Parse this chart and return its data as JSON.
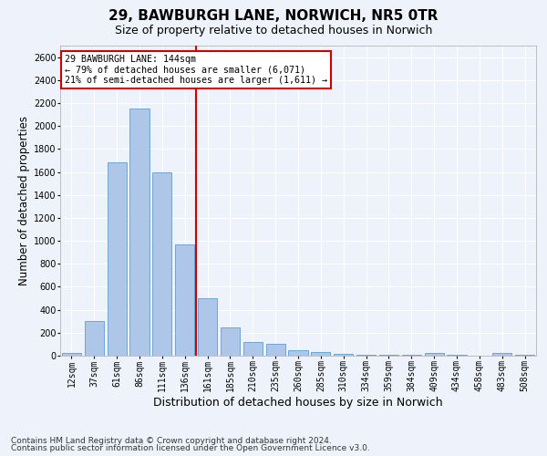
{
  "title_line1": "29, BAWBURGH LANE, NORWICH, NR5 0TR",
  "title_line2": "Size of property relative to detached houses in Norwich",
  "xlabel": "Distribution of detached houses by size in Norwich",
  "ylabel": "Number of detached properties",
  "categories": [
    "12sqm",
    "37sqm",
    "61sqm",
    "86sqm",
    "111sqm",
    "136sqm",
    "161sqm",
    "185sqm",
    "210sqm",
    "235sqm",
    "260sqm",
    "285sqm",
    "310sqm",
    "334sqm",
    "359sqm",
    "384sqm",
    "409sqm",
    "434sqm",
    "458sqm",
    "483sqm",
    "508sqm"
  ],
  "values": [
    20,
    300,
    1680,
    2150,
    1600,
    970,
    500,
    250,
    120,
    100,
    45,
    30,
    15,
    10,
    8,
    5,
    20,
    5,
    3,
    25,
    5
  ],
  "bar_color": "#aec6e8",
  "bar_edge_color": "#5a9fd4",
  "vline_x": 5.5,
  "vline_color": "#cc0000",
  "annotation_text": "29 BAWBURGH LANE: 144sqm\n← 79% of detached houses are smaller (6,071)\n21% of semi-detached houses are larger (1,611) →",
  "annotation_box_color": "#ffffff",
  "annotation_box_edge": "#cc0000",
  "ylim": [
    0,
    2700
  ],
  "yticks": [
    0,
    200,
    400,
    600,
    800,
    1000,
    1200,
    1400,
    1600,
    1800,
    2000,
    2200,
    2400,
    2600
  ],
  "footer1": "Contains HM Land Registry data © Crown copyright and database right 2024.",
  "footer2": "Contains public sector information licensed under the Open Government Licence v3.0.",
  "bg_color": "#eef2fb",
  "grid_color": "#ffffff",
  "title_fontsize": 11,
  "subtitle_fontsize": 9,
  "axis_label_fontsize": 8.5,
  "tick_fontsize": 7,
  "footer_fontsize": 6.5
}
